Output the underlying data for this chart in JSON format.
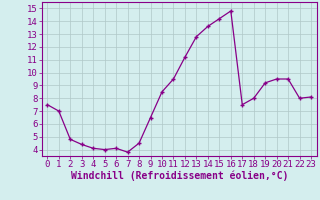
{
  "x": [
    0,
    1,
    2,
    3,
    4,
    5,
    6,
    7,
    8,
    9,
    10,
    11,
    12,
    13,
    14,
    15,
    16,
    17,
    18,
    19,
    20,
    21,
    22,
    23
  ],
  "y": [
    7.5,
    7.0,
    4.8,
    4.4,
    4.1,
    4.0,
    4.1,
    3.8,
    4.5,
    6.5,
    8.5,
    9.5,
    11.2,
    12.8,
    13.6,
    14.2,
    14.8,
    7.5,
    8.0,
    9.2,
    9.5,
    9.5,
    8.0,
    8.1
  ],
  "line_color": "#880088",
  "marker": "+",
  "bg_color": "#d4eeee",
  "grid_color": "#b0c8c8",
  "xlabel": "Windchill (Refroidissement éolien,°C)",
  "ylim": [
    3.5,
    15.5
  ],
  "xlim": [
    -0.5,
    23.5
  ],
  "yticks": [
    4,
    5,
    6,
    7,
    8,
    9,
    10,
    11,
    12,
    13,
    14,
    15
  ],
  "xticks": [
    0,
    1,
    2,
    3,
    4,
    5,
    6,
    7,
    8,
    9,
    10,
    11,
    12,
    13,
    14,
    15,
    16,
    17,
    18,
    19,
    20,
    21,
    22,
    23
  ],
  "axis_color": "#880088",
  "tick_font_size": 6.5,
  "label_font_size": 7
}
